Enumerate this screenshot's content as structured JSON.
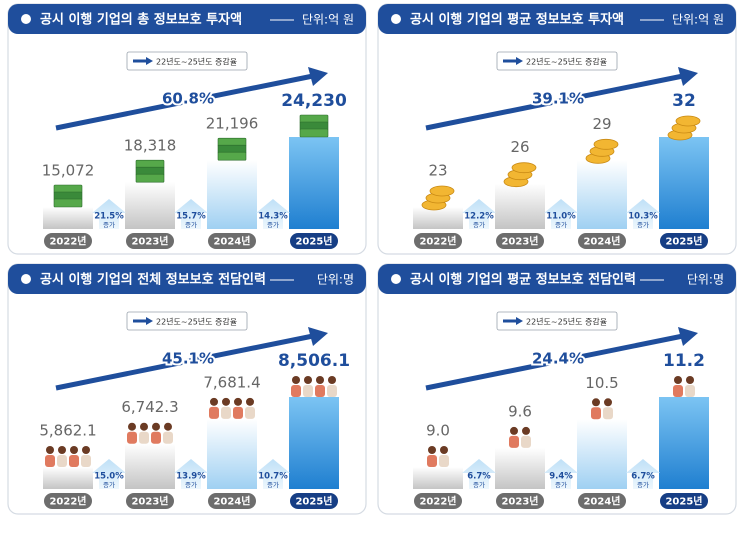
{
  "chart_data": [
    {
      "type": "bar",
      "title": "공시 이행 기업의 총 정보보호 투자액",
      "subtitle": "단위:억 원",
      "legend": "22년도~25년도 증감율",
      "growth": "60.8%",
      "categories": [
        "2022년",
        "2023년",
        "2024년",
        "2025년"
      ],
      "values": [
        15072,
        18318,
        21196,
        24230
      ],
      "value_labels": [
        "15,072",
        "18,318",
        "21,196",
        "24,230"
      ],
      "changes": [
        "21.5%",
        "15.7%",
        "14.3%"
      ],
      "change_label": "증가"
    },
    {
      "type": "bar",
      "title": "공시 이행 기업의 평균 정보보호 투자액",
      "subtitle": "단위:억 원",
      "legend": "22년도~25년도 증감율",
      "growth": "39.1%",
      "categories": [
        "2022년",
        "2023년",
        "2024년",
        "2025년"
      ],
      "values": [
        23,
        26,
        29,
        32
      ],
      "value_labels": [
        "23",
        "26",
        "29",
        "32"
      ],
      "changes": [
        "12.2%",
        "11.0%",
        "10.3%"
      ],
      "change_label": "증가"
    },
    {
      "type": "bar",
      "title": "공시 이행 기업의 전체 정보보호 전담인력",
      "subtitle": "단위:명",
      "legend": "22년도~25년도 증감율",
      "growth": "45.1%",
      "categories": [
        "2022년",
        "2023년",
        "2024년",
        "2025년"
      ],
      "values": [
        5862.1,
        6742.3,
        7681.4,
        8506.1
      ],
      "value_labels": [
        "5,862.1",
        "6,742.3",
        "7,681.4",
        "8,506.1"
      ],
      "changes": [
        "15.0%",
        "13.9%",
        "10.7%"
      ],
      "change_label": "증가"
    },
    {
      "type": "bar",
      "title": "공시 이행 기업의 평균 정보보호 전담인력",
      "subtitle": "단위:명",
      "legend": "22년도~25년도 증감율",
      "growth": "24.4%",
      "categories": [
        "2022년",
        "2023년",
        "2024년",
        "2025년"
      ],
      "values": [
        9,
        9.6,
        10.5,
        11.2
      ],
      "value_labels": [
        "9.0",
        "9.6",
        "10.5",
        "11.2"
      ],
      "changes": [
        "6.7%",
        "9.4%",
        "6.7%"
      ],
      "change_label": "증가"
    }
  ]
}
